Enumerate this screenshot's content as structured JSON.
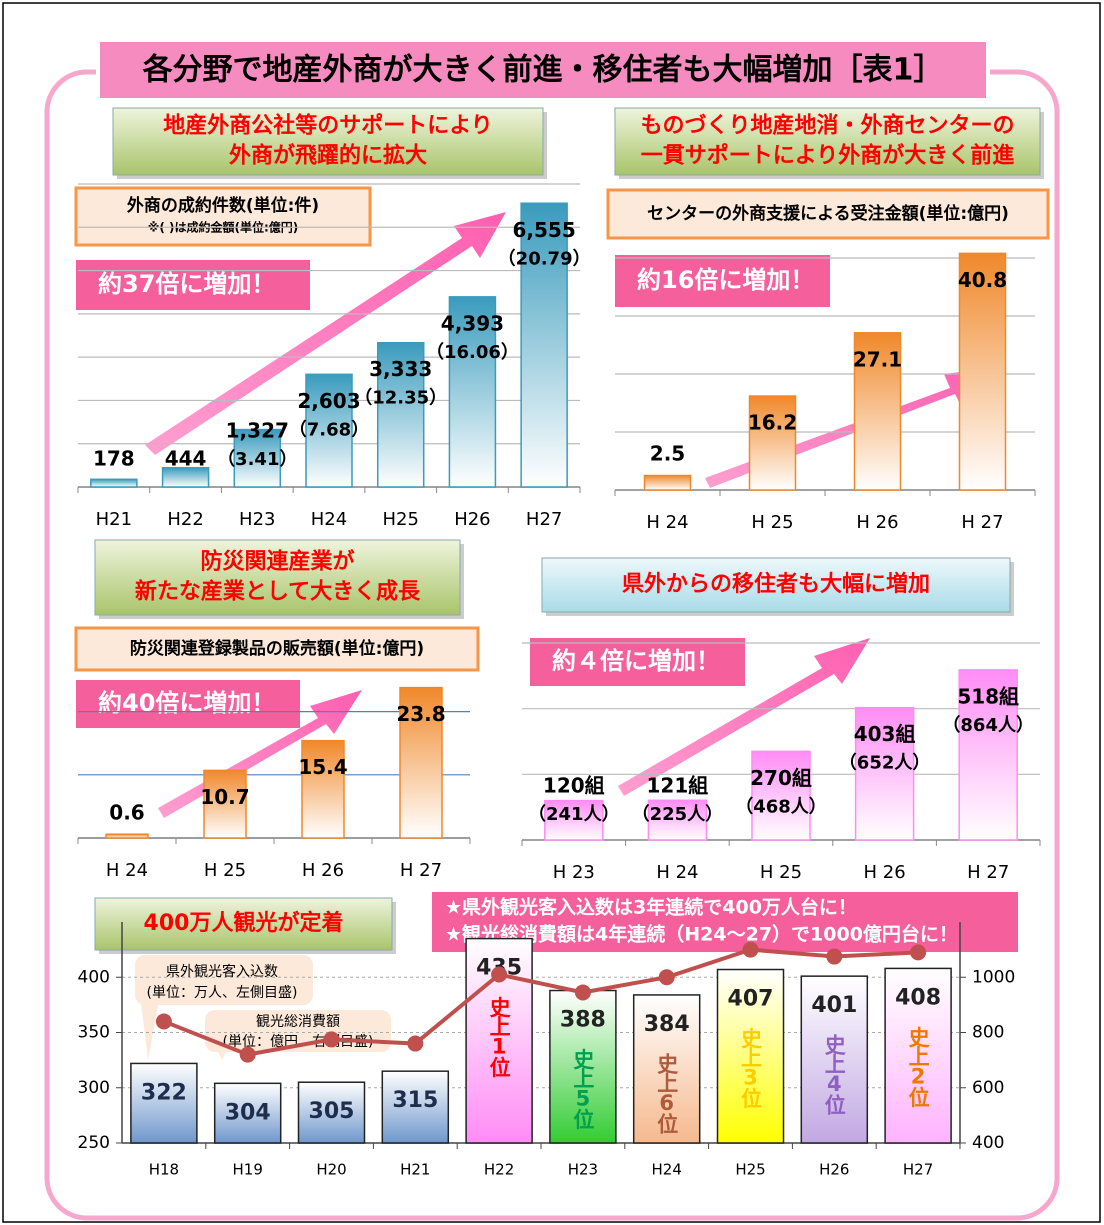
{
  "title": "各分野で地産外商が大きく前進・移住者も大幅増加［表1］",
  "chart_data": [
    {
      "type": "bar",
      "title": [
        "地産外商公社等のサポートにより",
        "外商が飛躍的に拡大"
      ],
      "subtitle": "外商の成約件数(単位:件)",
      "note": "※( )は成約金額(単位:億円)",
      "annotation": "約37倍に増加！",
      "categories": [
        "H21",
        "H22",
        "H23",
        "H24",
        "H25",
        "H26",
        "H27"
      ],
      "values": [
        178,
        444,
        1327,
        2603,
        3333,
        4393,
        6555
      ],
      "value_labels": [
        "178",
        "444",
        "1,327",
        "2,603",
        "3,333",
        "4,393",
        "6,555"
      ],
      "amount_labels": [
        null,
        null,
        "（3.41）",
        "（7.68）",
        "（12.35）",
        "（16.06）",
        "（20.79）"
      ],
      "color": "#3a9bbd",
      "ylim": [
        0,
        7000
      ],
      "yticks": [
        0,
        1000,
        2000,
        3000,
        4000,
        5000,
        6000,
        7000
      ],
      "grid": true,
      "grid_color": "#bbbbbb"
    },
    {
      "type": "bar",
      "title": [
        "ものづくり地産地消・外商センターの",
        "一貫サポートにより外商が大きく前進"
      ],
      "subtitle": "センターの外商支援による受注金額(単位:億円)",
      "annotation": "約16倍に増加！",
      "categories": [
        "H 24",
        "H 25",
        "H 26",
        "H 27"
      ],
      "values": [
        2.5,
        16.2,
        27.1,
        40.8
      ],
      "color": "#f0882a",
      "ylim": [
        0,
        45
      ],
      "yticks": [
        0,
        10,
        20,
        30,
        40
      ],
      "grid": true,
      "grid_color": "#bbbbbb"
    },
    {
      "type": "bar",
      "title": [
        "防災関連産業が",
        "新たな産業として大きく成長"
      ],
      "subtitle": "防災関連登録製品の販売額(単位:億円)",
      "annotation": "約40倍に増加！",
      "categories": [
        "H 24",
        "H 25",
        "H 26",
        "H 27"
      ],
      "values": [
        0.6,
        10.7,
        15.4,
        23.8
      ],
      "color": "#f0882a",
      "ylim": [
        0,
        25
      ],
      "yticks": [
        0,
        10,
        20
      ],
      "grid": true,
      "grid_color": "#4f81bd"
    },
    {
      "type": "bar",
      "title": [
        "県外からの移住者も大幅に増加"
      ],
      "annotation": "約４倍に増加！",
      "categories": [
        "H 23",
        "H 24",
        "H 25",
        "H 26",
        "H 27"
      ],
      "values": [
        120,
        121,
        270,
        403,
        518
      ],
      "value_labels": [
        "120組",
        "121組",
        "270組",
        "403組",
        "518組"
      ],
      "amount_labels": [
        "（241人）",
        "（225人）",
        "（468人）",
        "（652人）",
        "（864人）"
      ],
      "color": "#ff8cf5",
      "ylim": [
        0,
        600
      ],
      "yticks": [
        0,
        200,
        400,
        600
      ],
      "grid": true,
      "grid_color": "#bbbbbb"
    },
    {
      "type": "combo",
      "title": [
        "400万人観光が定着"
      ],
      "banner": [
        "★県外観光客入込数は3年連続で400万人台に！",
        "★観光総消費額は4年連続（H24～27）で1000億円台に！"
      ],
      "categories": [
        "H18",
        "H19",
        "H20",
        "H21",
        "H22",
        "H23",
        "H24",
        "H25",
        "H26",
        "H27"
      ],
      "series": [
        {
          "name": "県外観光客入込数",
          "unit": "(単位：万人、左側目盛)",
          "type": "bar",
          "values": [
            322,
            304,
            305,
            315,
            435,
            388,
            384,
            407,
            401,
            408
          ],
          "colors": [
            "#6f97cc",
            "#6f97cc",
            "#6f97cc",
            "#6f97cc",
            "#ff8cf5",
            "#33cc33",
            "#f5b98e",
            "#ffff00",
            "#c2a8e3",
            "#ffb3ff"
          ],
          "rank_labels": [
            null,
            null,
            null,
            null,
            "史上1位",
            "史上5位",
            "史上6位",
            "史上3位",
            "史上4位",
            "史上2位"
          ],
          "rank_colors": [
            null,
            null,
            null,
            null,
            "#ff0000",
            "#00a050",
            "#b05a3c",
            "#ffcc00",
            "#9060c0",
            "#f07800"
          ]
        },
        {
          "name": "観光総消費額",
          "unit": "(単位：億円、右側目盛)",
          "type": "line",
          "axis": "y2",
          "color": "#c0504d",
          "values": [
            840,
            720,
            775,
            760,
            1010,
            945,
            1000,
            1100,
            1075,
            1090
          ]
        }
      ],
      "ylim": [
        250,
        450
      ],
      "yticks": [
        250,
        300,
        350,
        400
      ],
      "y2lim": [
        400,
        1200
      ],
      "y2ticks": [
        400,
        600,
        800,
        1000
      ],
      "grid": true
    }
  ]
}
